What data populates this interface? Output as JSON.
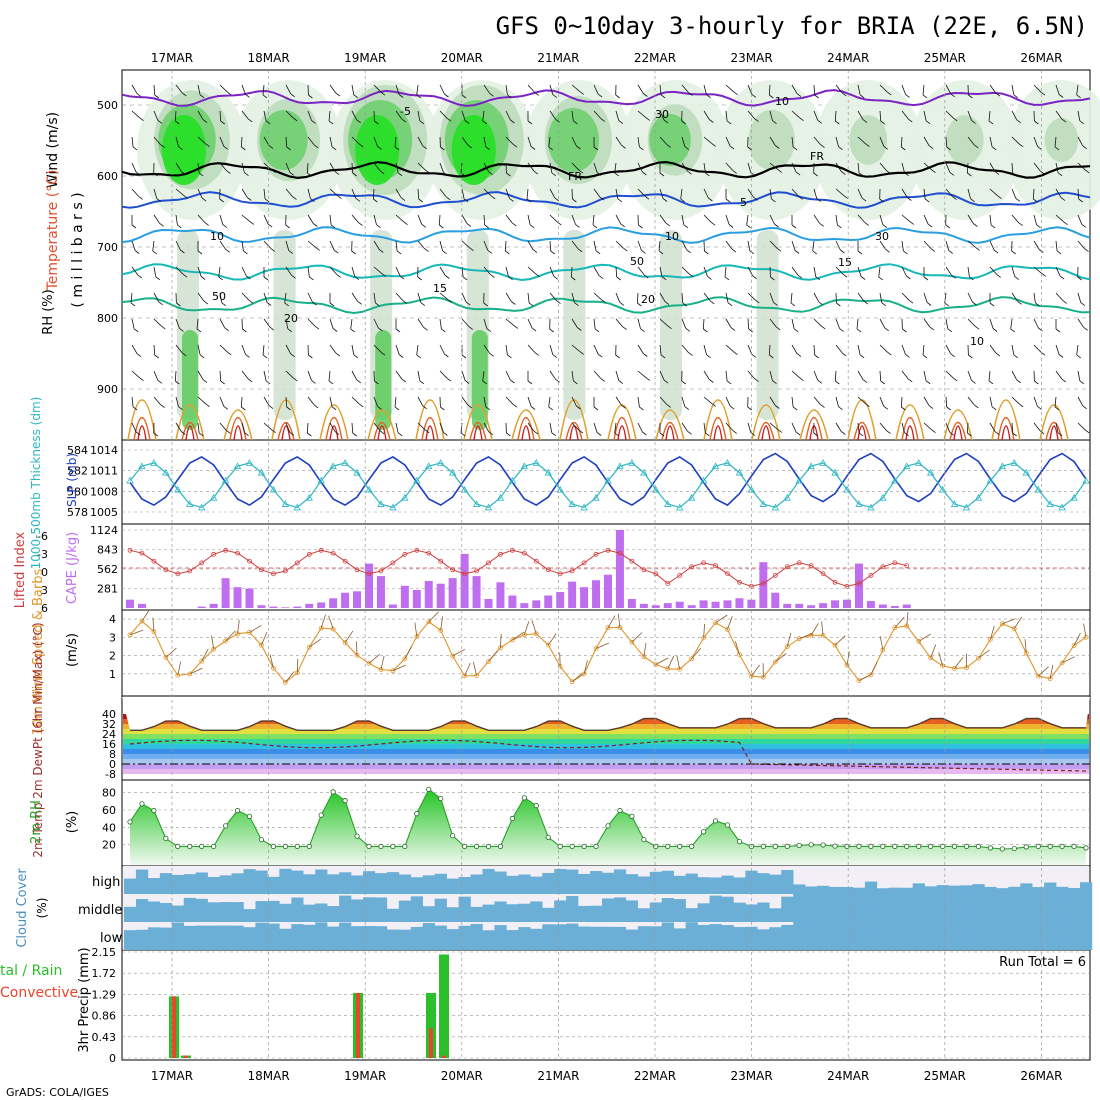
{
  "header": {
    "title": "GFS 0~10day 3-hourly for BRIA (22E, 6.5N)",
    "credit": "GrADS: COLA/IGES"
  },
  "dates": [
    "17MAR",
    "18MAR",
    "19MAR",
    "20MAR",
    "21MAR",
    "22MAR",
    "23MAR",
    "24MAR",
    "25MAR",
    "26MAR"
  ],
  "colors": {
    "rh_green": "#2ecc2e",
    "slp": "#1f3fbf",
    "thickness": "#2bb6c4",
    "lifted": "#d23c3c",
    "cape": "#c06ef0",
    "wind": "#e0952a",
    "barb": "#8a5a2a",
    "temp_fill": "#c0392b",
    "rh2m": "#2aa02a",
    "cloud": "#6baed6",
    "cloud_clear": "#f2eff6",
    "precip_total": "#2bbf2b",
    "precip_conv": "#e8452a"
  },
  "panels": {
    "upper": {
      "ylabel_wind": "Wind (m/s)",
      "ylabel_temp": "Temperature (°C)",
      "ylabel_rh": "RH (%)",
      "ylabel_mb": "( m i l l i b a r s )",
      "yticks": [
        "500",
        "600",
        "700",
        "800",
        "900"
      ],
      "contour_labels": [
        "-5",
        "FR",
        "FR",
        "5",
        "10",
        "10",
        "15",
        "15",
        "20",
        "20",
        "50",
        "50",
        "30",
        "30",
        "10",
        "10"
      ]
    },
    "slp": {
      "ylabel": "1000-500mb Thickness (dm)",
      "ylabel_right": "SLP (mb)",
      "ticks_left": [
        "584",
        "582",
        "580",
        "578"
      ],
      "ticks_right": [
        "1014",
        "1011",
        "1008",
        "1005"
      ]
    },
    "cape": {
      "ylabel_left": "Lifted Index",
      "ylabel_right": "CAPE (J/kg)",
      "ticks_left": [
        "-6",
        "-3",
        "0",
        "3",
        "6"
      ],
      "ticks_right": [
        "1124",
        "843",
        "562",
        "281"
      ]
    },
    "wind": {
      "ylabel": "10m Wind Speed & Barbs",
      "units": "(m/s)",
      "ticks": [
        "4",
        "3",
        "2",
        "1"
      ]
    },
    "temp": {
      "ylabel": "2m Temp 2m DewPt (6hr Min/Max) (°C)",
      "ticks": [
        "40",
        "32",
        "24",
        "16",
        "8",
        "0",
        "-8"
      ]
    },
    "rh": {
      "ylabel": "2m RH",
      "units": "(%)",
      "ticks": [
        "80",
        "60",
        "40",
        "20"
      ]
    },
    "cloud": {
      "ylabel": "Cloud Cover",
      "units": "(%)",
      "levels": [
        "high",
        "middle",
        "low"
      ]
    },
    "precip": {
      "ylabel": "3hr Precip (mm)",
      "legend_total": "tal / Rain",
      "legend_conv": "Convective",
      "run_total": "Run Total = 6",
      "ticks": [
        "2.15",
        "1.72",
        "1.29",
        "0.86",
        "0.43",
        "0"
      ]
    }
  },
  "chart_data": [
    {
      "type": "line",
      "title": "Sea level pressure / 1000-500mb thickness",
      "x": [
        "17MAR 00",
        "17MAR 12",
        "18MAR 00",
        "18MAR 12",
        "19MAR 00",
        "19MAR 12",
        "20MAR 00",
        "20MAR 12",
        "21MAR 00",
        "21MAR 12",
        "22MAR 00",
        "22MAR 12",
        "23MAR 00",
        "23MAR 12",
        "24MAR 00",
        "24MAR 12",
        "25MAR 00",
        "25MAR 12",
        "26MAR 00"
      ],
      "series": [
        {
          "name": "SLP (mb)",
          "values": [
            1006,
            1009,
            1006,
            1010,
            1006,
            1011,
            1006,
            1012,
            1006,
            1013,
            1006,
            1013,
            1006,
            1013,
            1007,
            1014,
            1006,
            1013,
            1007
          ]
        },
        {
          "name": "Thickness (dm)",
          "values": [
            583,
            580,
            582,
            579,
            582,
            579,
            582,
            580,
            583,
            578,
            582,
            578,
            583,
            579,
            583,
            578,
            583,
            578,
            582
          ]
        }
      ]
    },
    {
      "type": "bar",
      "title": "CAPE (J/kg)",
      "x": [
        "17MAR 00",
        "17MAR 12",
        "18MAR 00",
        "18MAR 12",
        "19MAR 00",
        "19MAR 12",
        "20MAR 00",
        "20MAR 12",
        "21MAR 00",
        "21MAR 12",
        "22MAR 00",
        "22MAR 12",
        "23MAR 00"
      ],
      "values": [
        150,
        430,
        60,
        640,
        420,
        790,
        280,
        1124,
        130,
        660,
        110,
        640,
        30
      ],
      "ylim": [
        0,
        1124
      ]
    },
    {
      "type": "line",
      "title": "10m Wind Speed (m/s)",
      "x": [
        "17MAR",
        "18MAR",
        "19MAR",
        "20MAR",
        "21MAR",
        "22MAR",
        "23MAR",
        "24MAR",
        "25MAR",
        "26MAR"
      ],
      "values": [
        1.0,
        2.0,
        2.8,
        3.2,
        2.5,
        2.0,
        3.5,
        1.5,
        3.0,
        2.5
      ],
      "ylim": [
        0,
        4.5
      ]
    },
    {
      "type": "line",
      "title": "2m Temp (°C)",
      "x": [
        "17MAR",
        "18MAR",
        "19MAR",
        "20MAR",
        "21MAR",
        "22MAR",
        "23MAR",
        "24MAR",
        "25MAR",
        "26MAR"
      ],
      "series": [
        {
          "name": "2m Temp",
          "values": [
            28,
            35,
            30,
            36,
            37,
            37,
            38,
            38,
            38,
            40
          ]
        },
        {
          "name": "2m DewPt",
          "values": [
            12,
            18,
            20,
            20,
            18,
            18,
            14,
            -2,
            -4,
            -6
          ]
        }
      ],
      "ylim": [
        -8,
        40
      ]
    },
    {
      "type": "area",
      "title": "2m RH (%)",
      "x": [
        "17MAR",
        "18MAR",
        "19MAR",
        "20MAR",
        "21MAR",
        "22MAR",
        "23MAR",
        "24MAR",
        "25MAR",
        "26MAR"
      ],
      "values": [
        68,
        60,
        82,
        85,
        75,
        60,
        48,
        20,
        18,
        15
      ],
      "ylim": [
        0,
        90
      ]
    },
    {
      "type": "bar",
      "title": "3hr Precip (mm)",
      "x": [
        "17MAR 00",
        "17MAR 03",
        "18MAR 21",
        "19MAR 18",
        "19MAR 21"
      ],
      "series": [
        {
          "name": "Total / Rain",
          "values": [
            1.25,
            0.05,
            1.32,
            1.32,
            2.1
          ]
        },
        {
          "name": "Convective",
          "values": [
            1.25,
            0.05,
            1.32,
            0.6,
            0.05
          ]
        }
      ],
      "ylim": [
        0,
        2.15
      ]
    }
  ]
}
